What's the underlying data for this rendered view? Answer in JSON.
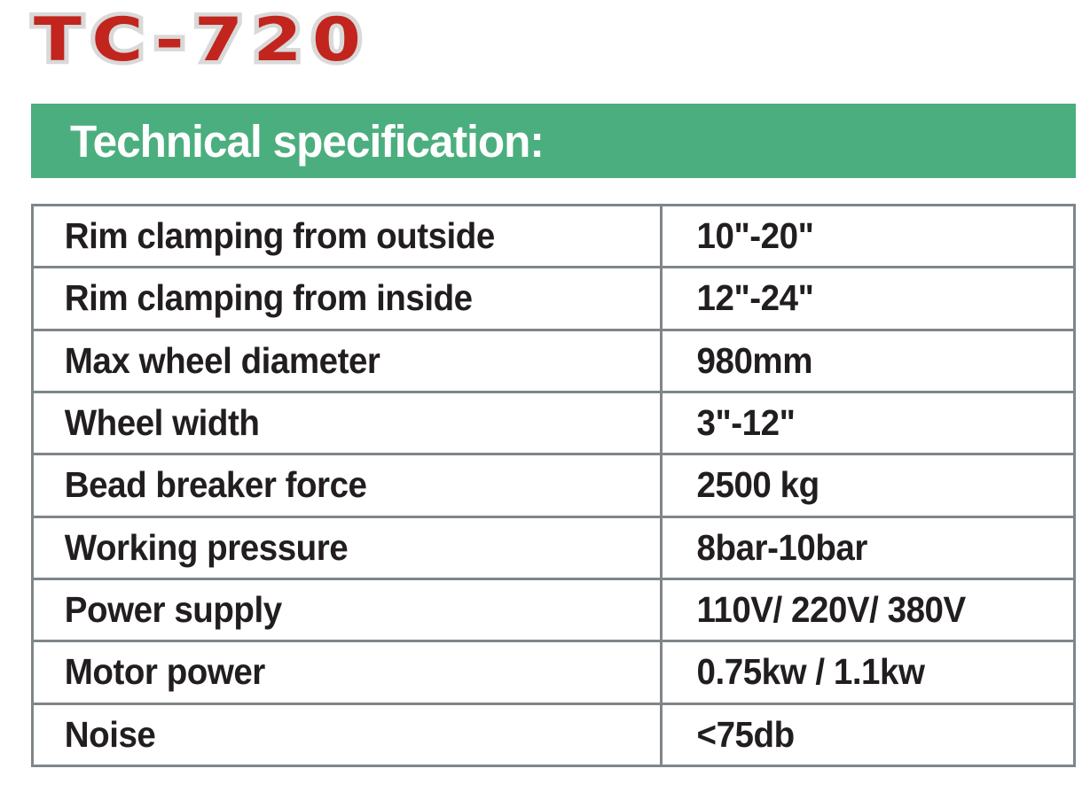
{
  "logo": {
    "text": "TC-720",
    "color": "#c1251d",
    "outline_color": "#d9d9d9"
  },
  "banner": {
    "title": "Technical specification:",
    "background_color": "#4bae7e",
    "text_color": "#ffffff"
  },
  "spec_table": {
    "type": "table",
    "border_color": "#7f868a",
    "text_color": "#221e1f",
    "rows": [
      {
        "label": "Rim clamping from outside",
        "value": "10\"-20\""
      },
      {
        "label": "Rim clamping from inside",
        "value": "12\"-24\""
      },
      {
        "label": "Max wheel diameter",
        "value": "980mm"
      },
      {
        "label": "Wheel width",
        "value": "3\"-12\""
      },
      {
        "label": "Bead breaker force",
        "value": "2500 kg"
      },
      {
        "label": "Working pressure",
        "value": "8bar-10bar"
      },
      {
        "label": "Power supply",
        "value": "110V/ 220V/ 380V"
      },
      {
        "label": "Motor power",
        "value": "0.75kw / 1.1kw"
      },
      {
        "label": "Noise",
        "value": "<75db"
      }
    ]
  }
}
